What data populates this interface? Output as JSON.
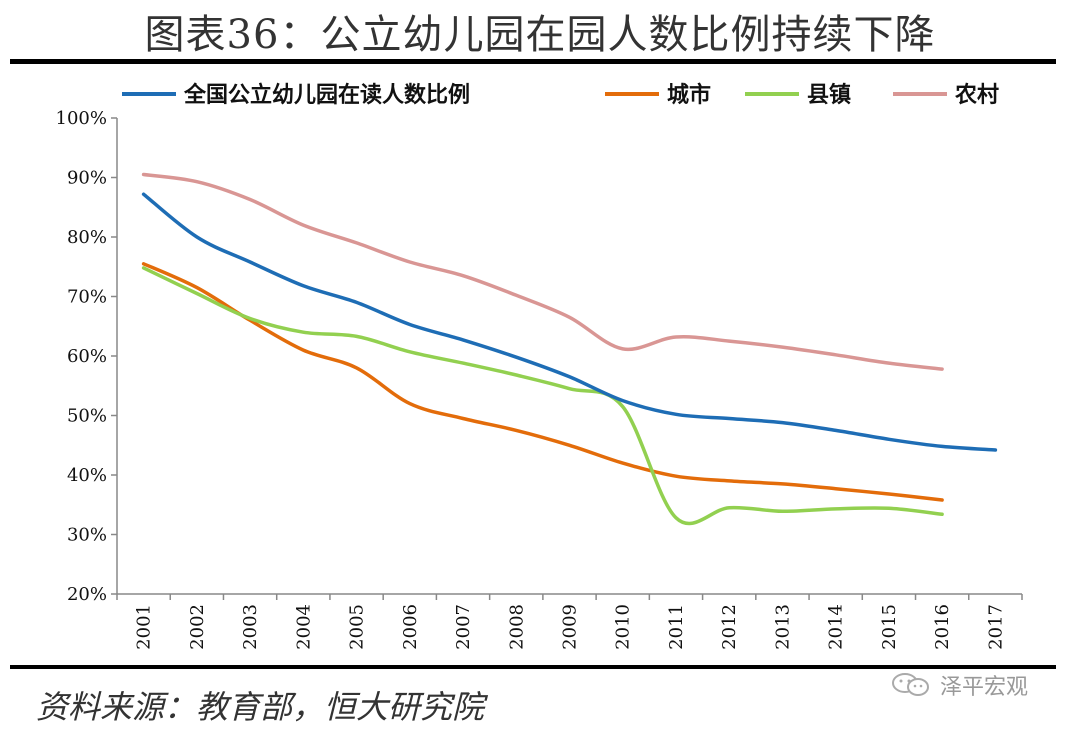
{
  "header": {
    "title": "图表36：公立幼儿园在园人数比例持续下降"
  },
  "footer": {
    "source": "资料来源：教育部，恒大研究院",
    "brand": "泽平宏观"
  },
  "colors": {
    "national": "#1E6DB5",
    "city": "#E36C0A",
    "town": "#92D050",
    "rural": "#D99694"
  },
  "chart_data": {
    "type": "line",
    "x": [
      "2001",
      "2002",
      "2003",
      "2004",
      "2005",
      "2006",
      "2007",
      "2008",
      "2009",
      "2010",
      "2011",
      "2012",
      "2013",
      "2014",
      "2015",
      "2016",
      "2017"
    ],
    "y_ticks": [
      "100%",
      "90%",
      "80%",
      "70%",
      "60%",
      "50%",
      "40%",
      "30%",
      "20%"
    ],
    "ylim": [
      20,
      100
    ],
    "legend_position": "top",
    "series": [
      {
        "name": "全国公立幼儿园在读人数比例",
        "color": "#1E6DB5",
        "values": [
          87.2,
          80,
          75.8,
          71.8,
          69,
          65.3,
          62.7,
          59.8,
          56.5,
          52.5,
          50.2,
          49.5,
          48.8,
          47.5,
          46,
          44.8,
          44.2
        ]
      },
      {
        "name": "城市",
        "color": "#E36C0A",
        "values": [
          75.5,
          71.5,
          66,
          61,
          58,
          52,
          49.5,
          47.5,
          45,
          42,
          39.8,
          39,
          38.5,
          37.7,
          36.8,
          35.8,
          null
        ]
      },
      {
        "name": "县镇",
        "color": "#92D050",
        "values": [
          74.8,
          70.5,
          66.3,
          64,
          63.3,
          60.7,
          58.8,
          56.8,
          54.5,
          51.5,
          32.8,
          34.5,
          33.9,
          34.3,
          34.4,
          33.4,
          null
        ]
      },
      {
        "name": "农村",
        "color": "#D99694",
        "values": [
          90.5,
          89.3,
          86.3,
          82,
          79,
          75.8,
          73.5,
          70.2,
          66.5,
          61.2,
          63.2,
          62.5,
          61.5,
          60.2,
          58.8,
          57.8,
          null
        ]
      }
    ]
  }
}
